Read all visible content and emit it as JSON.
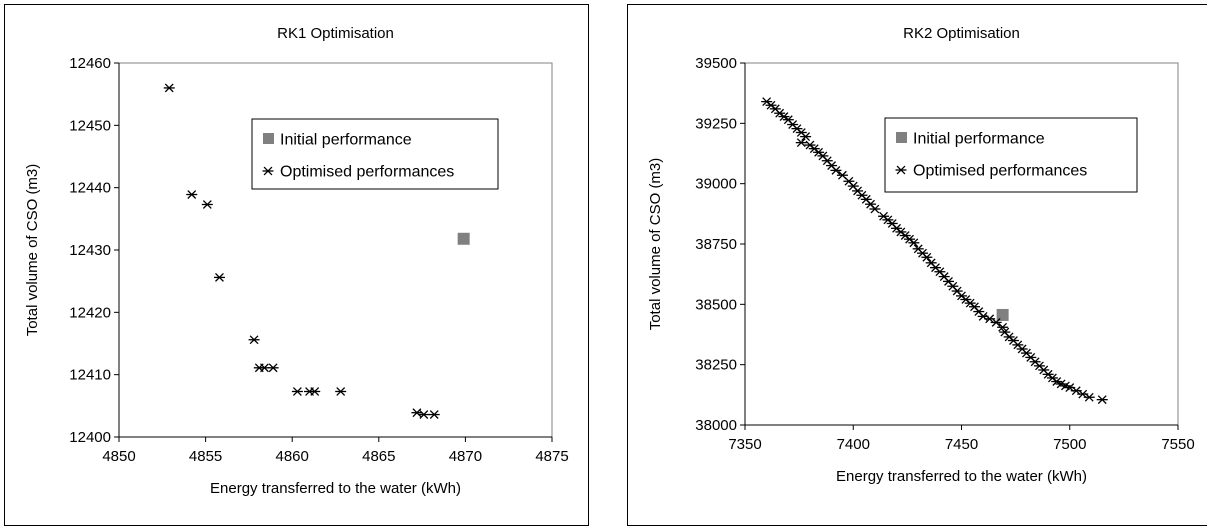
{
  "chart_data": [
    {
      "type": "scatter",
      "title": "RK1 Optimisation",
      "xlabel": "Energy transferred to the water (kWh)",
      "ylabel": "Total volume of CSO (m3)",
      "xlim": [
        4850,
        4875
      ],
      "ylim": [
        12400,
        12460
      ],
      "xticks": [
        "4850",
        "4855",
        "4860",
        "4865",
        "4870",
        "4875"
      ],
      "yticks": [
        "12400",
        "12410",
        "12420",
        "12430",
        "12440",
        "12450",
        "12460"
      ],
      "grid": false,
      "legend_position": "upper-right",
      "series": [
        {
          "name": "Initial performance",
          "marker": "square",
          "color": "#808080",
          "points": [
            [
              4869.9,
              12431.8
            ]
          ]
        },
        {
          "name": "Optimised performances",
          "marker": "asterisk",
          "color": "#000000",
          "points": [
            [
              4852.9,
              12456.0
            ],
            [
              4854.2,
              12438.9
            ],
            [
              4855.1,
              12437.3
            ],
            [
              4855.8,
              12425.6
            ],
            [
              4857.8,
              12415.6
            ],
            [
              4858.1,
              12411.1
            ],
            [
              4858.4,
              12411.1
            ],
            [
              4858.9,
              12411.1
            ],
            [
              4860.3,
              12407.3
            ],
            [
              4861.0,
              12407.3
            ],
            [
              4861.3,
              12407.3
            ],
            [
              4862.8,
              12407.3
            ],
            [
              4867.2,
              12403.9
            ],
            [
              4867.6,
              12403.6
            ],
            [
              4868.2,
              12403.6
            ]
          ]
        }
      ]
    },
    {
      "type": "scatter",
      "title": "RK2 Optimisation",
      "xlabel": "Energy transferred to the water (kWh)",
      "ylabel": "Total volume of CSO (m3)",
      "xlim": [
        7350,
        7550
      ],
      "ylim": [
        38000,
        39500
      ],
      "xticks": [
        "7350",
        "7400",
        "7450",
        "7500",
        "7550"
      ],
      "yticks": [
        "38000",
        "38250",
        "38500",
        "38750",
        "39000",
        "39250",
        "39500"
      ],
      "grid": false,
      "legend_position": "upper-right",
      "series": [
        {
          "name": "Initial performance",
          "marker": "square",
          "color": "#808080",
          "points": [
            [
              7469,
              38456
            ]
          ]
        },
        {
          "name": "Optimised performances",
          "marker": "asterisk",
          "color": "#000000",
          "points": [
            [
              7360,
              39340
            ],
            [
              7362,
              39325
            ],
            [
              7364,
              39310
            ],
            [
              7366,
              39292
            ],
            [
              7368,
              39278
            ],
            [
              7370,
              39265
            ],
            [
              7372,
              39245
            ],
            [
              7374,
              39228
            ],
            [
              7376,
              39212
            ],
            [
              7378,
              39195
            ],
            [
              7376,
              39170
            ],
            [
              7380,
              39160
            ],
            [
              7382,
              39145
            ],
            [
              7384,
              39130
            ],
            [
              7386,
              39115
            ],
            [
              7388,
              39095
            ],
            [
              7390,
              39075
            ],
            [
              7392,
              39055
            ],
            [
              7395,
              39035
            ],
            [
              7398,
              39010
            ],
            [
              7400,
              38990
            ],
            [
              7402,
              38970
            ],
            [
              7404,
              38952
            ],
            [
              7406,
              38935
            ],
            [
              7408,
              38915
            ],
            [
              7410,
              38895
            ],
            [
              7414,
              38865
            ],
            [
              7416,
              38850
            ],
            [
              7418,
              38835
            ],
            [
              7420,
              38815
            ],
            [
              7422,
              38800
            ],
            [
              7424,
              38785
            ],
            [
              7426,
              38770
            ],
            [
              7428,
              38755
            ],
            [
              7430,
              38730
            ],
            [
              7432,
              38712
            ],
            [
              7434,
              38695
            ],
            [
              7436,
              38672
            ],
            [
              7438,
              38652
            ],
            [
              7440,
              38635
            ],
            [
              7442,
              38615
            ],
            [
              7444,
              38595
            ],
            [
              7446,
              38575
            ],
            [
              7448,
              38555
            ],
            [
              7450,
              38535
            ],
            [
              7452,
              38520
            ],
            [
              7454,
              38505
            ],
            [
              7456,
              38490
            ],
            [
              7458,
              38470
            ],
            [
              7460,
              38450
            ],
            [
              7463,
              38440
            ],
            [
              7466,
              38425
            ],
            [
              7469,
              38405
            ],
            [
              7470,
              38385
            ],
            [
              7472,
              38365
            ],
            [
              7474,
              38350
            ],
            [
              7476,
              38332
            ],
            [
              7478,
              38315
            ],
            [
              7480,
              38298
            ],
            [
              7482,
              38280
            ],
            [
              7484,
              38262
            ],
            [
              7486,
              38245
            ],
            [
              7488,
              38228
            ],
            [
              7490,
              38210
            ],
            [
              7492,
              38195
            ],
            [
              7494,
              38180
            ],
            [
              7496,
              38170
            ],
            [
              7498,
              38162
            ],
            [
              7500,
              38155
            ],
            [
              7503,
              38142
            ],
            [
              7506,
              38128
            ],
            [
              7509,
              38115
            ],
            [
              7515,
              38105
            ]
          ]
        }
      ]
    }
  ]
}
